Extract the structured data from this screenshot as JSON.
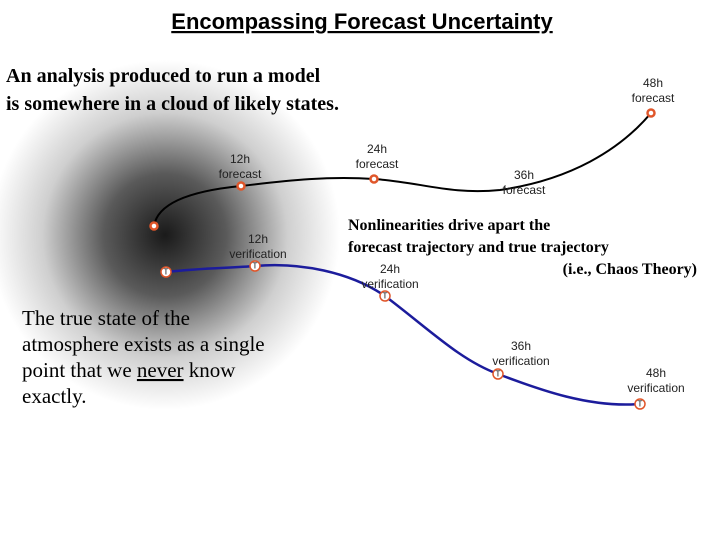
{
  "title": "Encompassing Forecast Uncertainty",
  "intro": [
    "An analysis produced to run a model",
    "is somewhere in a cloud of likely states."
  ],
  "truth_text": {
    "lines": [
      "The true state of the",
      "atmosphere exists as a single",
      "point that we ",
      "never",
      " know",
      "exactly."
    ]
  },
  "nonlinear": [
    "Nonlinearities drive apart the",
    "forecast trajectory and true trajectory",
    "(i.e., Chaos Theory)"
  ],
  "forecasts": [
    {
      "lines": [
        "12h",
        "forecast"
      ]
    },
    {
      "lines": [
        "24h",
        "forecast"
      ]
    },
    {
      "lines": [
        "36h",
        "forecast"
      ]
    },
    {
      "lines": [
        "48h",
        "forecast"
      ]
    }
  ],
  "verifications": [
    {
      "lines": [
        "12h",
        "verification"
      ],
      "marker": "T"
    },
    {
      "lines": [
        "24h",
        "verification"
      ],
      "marker": "T"
    },
    {
      "lines": [
        "36h",
        "verification"
      ],
      "marker": "T"
    },
    {
      "lines": [
        "48h",
        "verification"
      ],
      "marker": "T"
    }
  ],
  "analysis_marker": "T"
}
